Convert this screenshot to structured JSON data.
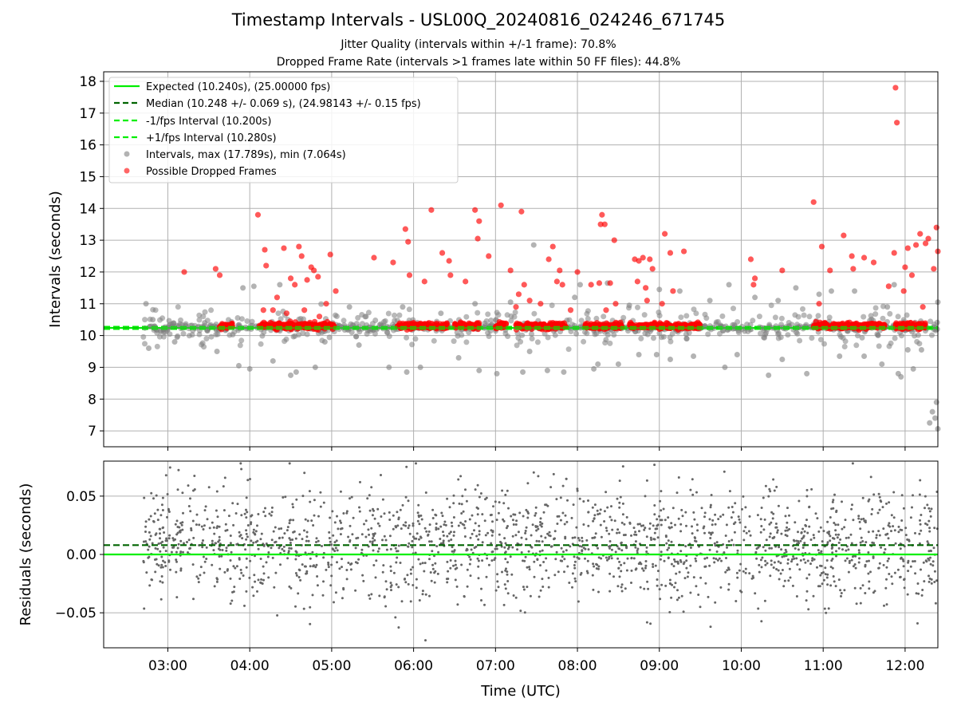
{
  "figure": {
    "title": "Timestamp Intervals - USL00Q_20240816_024246_671745",
    "subtitle_jitter": "Jitter Quality (intervals within +/-1 frame): 70.8%",
    "subtitle_dropped": "Dropped Frame Rate (intervals >1 frames late within 50 FF files): 44.8%"
  },
  "chart_data": [
    {
      "type": "scatter",
      "panel": "intervals",
      "title": "Timestamp Intervals - USL00Q_20240816_024246_671745",
      "xlabel": "",
      "ylabel": "Intervals (seconds)",
      "xlim": [
        "02:13",
        "12:24"
      ],
      "ylim": [
        6.5,
        18.3
      ],
      "yticks": [
        7,
        8,
        9,
        10,
        11,
        12,
        13,
        14,
        15,
        16,
        17,
        18
      ],
      "grid": true,
      "legend_position": "top-left",
      "reference_lines": [
        {
          "name": "Expected (10.240s), (25.00000 fps)",
          "y": 10.24,
          "style": "solid",
          "color": "#00ee00"
        },
        {
          "name": "Median (10.248 +/- 0.069 s), (24.98143 +/- 0.15 fps)",
          "y": 10.248,
          "style": "dashed",
          "color": "#006400"
        },
        {
          "name": "-1/fps Interval (10.200s)",
          "y": 10.2,
          "style": "dashed",
          "color": "#00ee00"
        },
        {
          "name": "+1/fps Interval (10.280s)",
          "y": 10.28,
          "style": "dashed",
          "color": "#00ee00"
        }
      ],
      "series": [
        {
          "name": "Intervals, max (17.789s), min (7.064s)",
          "color": "#808080",
          "summary": {
            "max": 17.789,
            "min": 7.064,
            "x_start": "02:42",
            "x_end": "12:24",
            "typical_range": [
              8.8,
              11.6
            ]
          },
          "points": [
            [
              "02:44",
              11.0
            ],
            [
              "02:46",
              9.6
            ],
            [
              "02:49",
              10.5
            ],
            [
              "03:05",
              9.8
            ],
            [
              "03:27",
              10.4
            ],
            [
              "03:36",
              9.5
            ],
            [
              "03:52",
              9.05
            ],
            [
              "03:55",
              11.5
            ],
            [
              "04:00",
              8.95
            ],
            [
              "04:03",
              11.55
            ],
            [
              "04:17",
              9.2
            ],
            [
              "04:22",
              11.6
            ],
            [
              "04:30",
              8.75
            ],
            [
              "04:34",
              8.85
            ],
            [
              "04:48",
              9.0
            ],
            [
              "04:55",
              9.8
            ],
            [
              "05:13",
              10.9
            ],
            [
              "05:20",
              9.7
            ],
            [
              "05:42",
              9.0
            ],
            [
              "05:52",
              10.9
            ],
            [
              "05:55",
              8.85
            ],
            [
              "06:05",
              9.0
            ],
            [
              "06:20",
              10.7
            ],
            [
              "06:33",
              9.3
            ],
            [
              "06:45",
              11.0
            ],
            [
              "06:48",
              8.9
            ],
            [
              "07:01",
              8.8
            ],
            [
              "07:11",
              11.05
            ],
            [
              "07:20",
              8.85
            ],
            [
              "07:25",
              9.5
            ],
            [
              "07:28",
              12.85
            ],
            [
              "07:38",
              8.9
            ],
            [
              "07:50",
              8.85
            ],
            [
              "07:58",
              11.2
            ],
            [
              "08:02",
              11.6
            ],
            [
              "08:12",
              8.95
            ],
            [
              "08:15",
              9.1
            ],
            [
              "08:22",
              11.65
            ],
            [
              "08:30",
              9.1
            ],
            [
              "08:38",
              10.95
            ],
            [
              "08:45",
              9.4
            ],
            [
              "08:58",
              9.4
            ],
            [
              "09:00",
              11.45
            ],
            [
              "09:08",
              9.25
            ],
            [
              "09:15",
              11.4
            ],
            [
              "09:25",
              9.35
            ],
            [
              "09:37",
              11.1
            ],
            [
              "09:48",
              9.0
            ],
            [
              "09:51",
              11.6
            ],
            [
              "09:57",
              9.4
            ],
            [
              "10:10",
              11.2
            ],
            [
              "10:20",
              8.75
            ],
            [
              "10:27",
              11.1
            ],
            [
              "10:30",
              9.25
            ],
            [
              "10:40",
              11.5
            ],
            [
              "10:48",
              8.8
            ],
            [
              "10:57",
              11.3
            ],
            [
              "11:06",
              11.4
            ],
            [
              "11:12",
              9.35
            ],
            [
              "11:23",
              11.4
            ],
            [
              "11:30",
              9.35
            ],
            [
              "11:43",
              9.1
            ],
            [
              "11:47",
              10.9
            ],
            [
              "11:52",
              11.6
            ],
            [
              "11:55",
              8.8
            ],
            [
              "11:57",
              8.7
            ],
            [
              "12:02",
              9.55
            ],
            [
              "12:06",
              8.95
            ],
            [
              "12:12",
              9.55
            ],
            [
              "12:18",
              7.25
            ],
            [
              "12:20",
              7.6
            ],
            [
              "12:22",
              7.4
            ],
            [
              "12:23",
              7.9
            ],
            [
              "12:24",
              7.064
            ],
            [
              "12:24",
              11.05
            ]
          ]
        },
        {
          "name": "Possible Dropped Frames",
          "color": "#ff0000",
          "summary": {
            "dense_near": 10.3
          },
          "points": [
            [
              "03:12",
              12.0
            ],
            [
              "03:35",
              12.1
            ],
            [
              "03:38",
              11.9
            ],
            [
              "04:06",
              13.8
            ],
            [
              "04:10",
              10.8
            ],
            [
              "04:11",
              12.7
            ],
            [
              "04:12",
              12.2
            ],
            [
              "04:17",
              10.8
            ],
            [
              "04:20",
              11.2
            ],
            [
              "04:25",
              12.75
            ],
            [
              "04:27",
              10.7
            ],
            [
              "04:30",
              11.8
            ],
            [
              "04:33",
              11.6
            ],
            [
              "04:36",
              12.8
            ],
            [
              "04:38",
              12.5
            ],
            [
              "04:40",
              10.8
            ],
            [
              "04:42",
              11.75
            ],
            [
              "04:45",
              12.15
            ],
            [
              "04:47",
              12.05
            ],
            [
              "04:50",
              11.85
            ],
            [
              "04:51",
              10.6
            ],
            [
              "04:56",
              11.0
            ],
            [
              "04:59",
              12.55
            ],
            [
              "05:03",
              11.4
            ],
            [
              "05:31",
              12.45
            ],
            [
              "05:45",
              12.3
            ],
            [
              "05:54",
              13.35
            ],
            [
              "05:56",
              12.95
            ],
            [
              "05:57",
              11.9
            ],
            [
              "06:08",
              11.7
            ],
            [
              "06:13",
              13.95
            ],
            [
              "06:21",
              12.6
            ],
            [
              "06:26",
              12.35
            ],
            [
              "06:27",
              11.9
            ],
            [
              "06:38",
              11.7
            ],
            [
              "06:45",
              13.95
            ],
            [
              "06:47",
              13.05
            ],
            [
              "06:48",
              13.6
            ],
            [
              "06:55",
              12.5
            ],
            [
              "07:04",
              14.1
            ],
            [
              "07:11",
              12.05
            ],
            [
              "07:15",
              10.9
            ],
            [
              "07:17",
              11.3
            ],
            [
              "07:19",
              13.9
            ],
            [
              "07:21",
              11.6
            ],
            [
              "07:25",
              11.1
            ],
            [
              "07:33",
              11.0
            ],
            [
              "07:39",
              12.4
            ],
            [
              "07:42",
              12.8
            ],
            [
              "07:45",
              11.7
            ],
            [
              "07:47",
              12.05
            ],
            [
              "07:49",
              11.6
            ],
            [
              "07:55",
              10.8
            ],
            [
              "08:00",
              12.0
            ],
            [
              "08:10",
              11.6
            ],
            [
              "08:16",
              11.65
            ],
            [
              "08:17",
              13.5
            ],
            [
              "08:18",
              13.8
            ],
            [
              "08:20",
              13.5
            ],
            [
              "08:21",
              10.8
            ],
            [
              "08:24",
              11.65
            ],
            [
              "08:27",
              13.0
            ],
            [
              "08:28",
              11.0
            ],
            [
              "08:42",
              12.4
            ],
            [
              "08:44",
              11.7
            ],
            [
              "08:45",
              12.35
            ],
            [
              "08:48",
              12.45
            ],
            [
              "08:50",
              11.5
            ],
            [
              "08:51",
              11.1
            ],
            [
              "08:53",
              12.4
            ],
            [
              "08:55",
              12.1
            ],
            [
              "09:02",
              11.0
            ],
            [
              "09:04",
              13.2
            ],
            [
              "09:08",
              12.6
            ],
            [
              "09:10",
              11.4
            ],
            [
              "09:18",
              12.65
            ],
            [
              "10:07",
              12.4
            ],
            [
              "10:09",
              11.6
            ],
            [
              "10:10",
              11.8
            ],
            [
              "10:30",
              12.05
            ],
            [
              "10:53",
              14.2
            ],
            [
              "10:57",
              11.0
            ],
            [
              "10:59",
              12.8
            ],
            [
              "11:05",
              12.05
            ],
            [
              "11:15",
              13.15
            ],
            [
              "11:21",
              12.5
            ],
            [
              "11:22",
              12.1
            ],
            [
              "11:30",
              12.45
            ],
            [
              "11:37",
              12.3
            ],
            [
              "11:48",
              11.55
            ],
            [
              "11:52",
              12.6
            ],
            [
              "11:53",
              17.8
            ],
            [
              "11:54",
              16.7
            ],
            [
              "11:59",
              11.4
            ],
            [
              "12:00",
              12.15
            ],
            [
              "12:02",
              12.75
            ],
            [
              "12:05",
              11.9
            ],
            [
              "12:08",
              12.85
            ],
            [
              "12:11",
              13.2
            ],
            [
              "12:13",
              10.9
            ],
            [
              "12:15",
              12.9
            ],
            [
              "12:17",
              13.05
            ],
            [
              "12:21",
              12.1
            ],
            [
              "12:23",
              13.4
            ],
            [
              "12:24",
              12.65
            ]
          ]
        }
      ]
    },
    {
      "type": "scatter",
      "panel": "residuals",
      "xlabel": "Time (UTC)",
      "ylabel": "Residuals (seconds)",
      "xlim": [
        "02:13",
        "12:24"
      ],
      "ylim": [
        -0.08,
        0.08
      ],
      "xticks": [
        "03:00",
        "04:00",
        "05:00",
        "06:00",
        "07:00",
        "08:00",
        "09:00",
        "10:00",
        "11:00",
        "12:00"
      ],
      "yticks": [
        -0.05,
        0.0,
        0.05
      ],
      "ytick_labels": [
        "−0.05",
        "0.00",
        "0.05"
      ],
      "grid": true,
      "reference_lines": [
        {
          "y": 0.0,
          "style": "solid",
          "color": "#00ee00"
        },
        {
          "y": 0.008,
          "style": "dashed",
          "color": "#006400"
        }
      ],
      "series": [
        {
          "name": "Residuals",
          "color": "#666666",
          "summary": {
            "x_start": "02:42",
            "x_end": "12:24",
            "typical_range": [
              -0.05,
              0.07
            ],
            "outlier_min": -0.08
          }
        }
      ]
    }
  ]
}
